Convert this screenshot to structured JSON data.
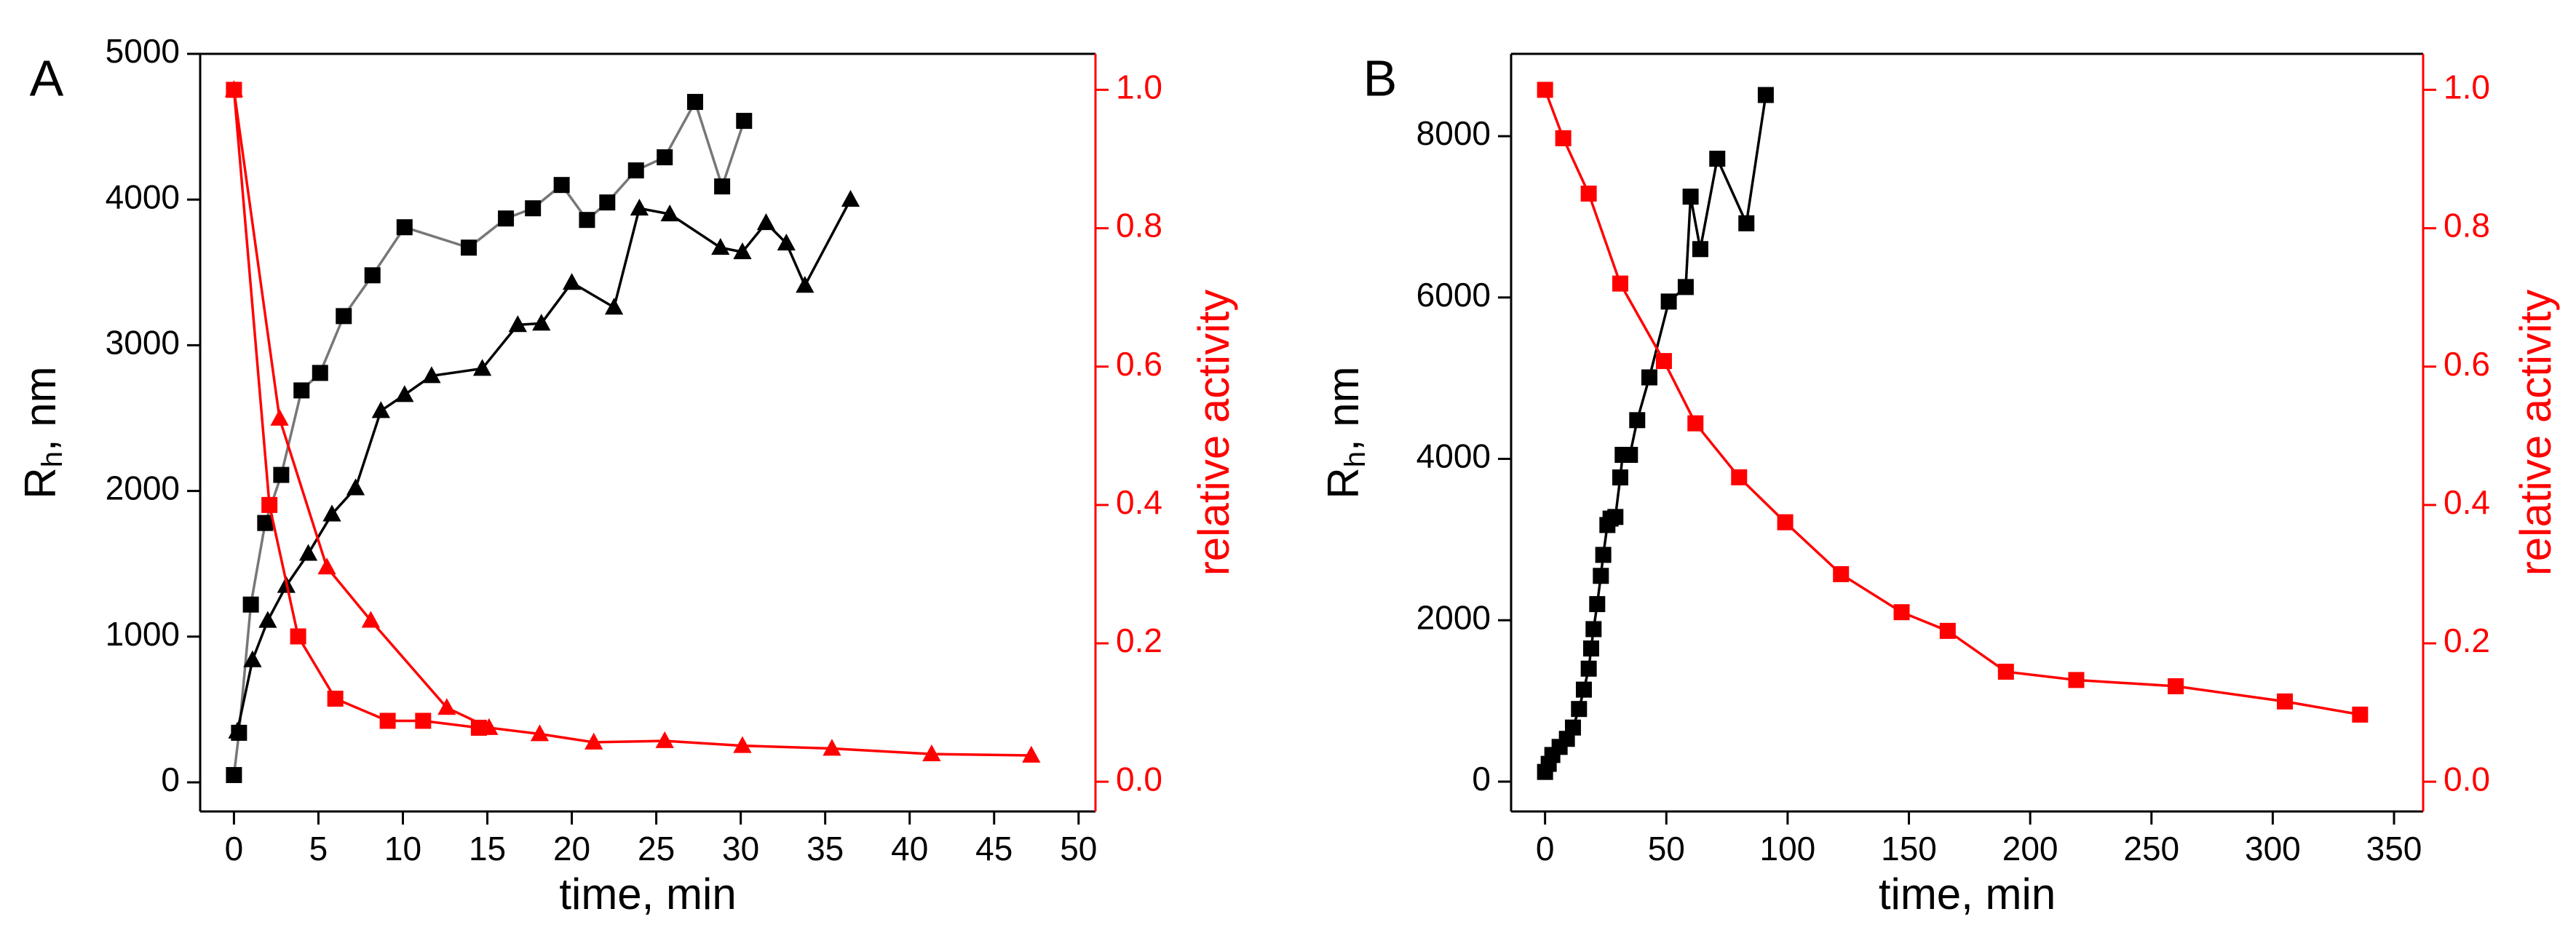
{
  "chart_data": [
    {
      "type": "line",
      "label": "A",
      "xlabel": "time, min",
      "ylabel": [
        "R",
        "h",
        ", nm"
      ],
      "y2label": "relative activity",
      "xlim": [
        -2,
        51
      ],
      "xticks": [
        0,
        5,
        10,
        15,
        20,
        25,
        30,
        35,
        40,
        45,
        50
      ],
      "ylim": [
        -200,
        5000
      ],
      "yticks": [
        0,
        1000,
        2000,
        3000,
        4000,
        5000
      ],
      "y2lim": [
        -0.043,
        1.052
      ],
      "y2ticks": [
        {
          "value": 0,
          "label": "0.0"
        },
        0.2,
        0.4,
        0.6,
        0.8,
        {
          "value": 1,
          "label": "1.0"
        }
      ],
      "axis_color": "#000000",
      "axis2_color": "#ff0000",
      "series": [
        {
          "color": "#000000",
          "line_color": "#777777",
          "marker": "square",
          "axis": "y",
          "x": [
            0,
            0.3,
            1.0,
            1.85,
            2.8,
            4.0,
            5.1,
            6.5,
            8.2,
            10.1,
            13.9,
            16.1,
            17.7,
            19.4,
            20.9,
            22.1,
            23.8,
            25.5,
            27.3,
            28.9,
            30.2
          ],
          "values": [
            50,
            340,
            1220,
            1780,
            2110,
            2690,
            2810,
            3200,
            3480,
            3810,
            3670,
            3870,
            3940,
            4100,
            3860,
            3980,
            4200,
            4290,
            4670,
            4090,
            4540
          ]
        },
        {
          "color": "#000000",
          "line_color": "#000000",
          "marker": "triangle",
          "axis": "y",
          "x": [
            0.2,
            1.1,
            2.0,
            3.1,
            4.4,
            5.8,
            7.2,
            8.7,
            10.1,
            11.7,
            14.7,
            16.8,
            18.2,
            20.0,
            22.5,
            24.0,
            25.8,
            28.8,
            30.1,
            31.5,
            32.7,
            33.8,
            36.5
          ],
          "values": [
            350,
            840,
            1110,
            1350,
            1570,
            1840,
            2020,
            2550,
            2660,
            2790,
            2840,
            3140,
            3150,
            3430,
            3260,
            3940,
            3900,
            3670,
            3640,
            3840,
            3700,
            3410,
            4000
          ]
        },
        {
          "color": "#ff0000",
          "line_color": "#ff0000",
          "marker": "square",
          "axis": "y2",
          "x": [
            0,
            2.1,
            3.8,
            6.0,
            9.1,
            11.2,
            14.5
          ],
          "values": [
            1.0,
            0.4,
            0.21,
            0.12,
            0.088,
            0.088,
            0.078
          ]
        },
        {
          "color": "#ff0000",
          "line_color": "#ff0000",
          "marker": "triangle",
          "axis": "y2",
          "x": [
            0,
            2.7,
            5.5,
            8.1,
            12.6,
            15.1,
            18.1,
            21.3,
            25.5,
            30.1,
            35.4,
            41.3,
            47.2
          ],
          "values": [
            1.0,
            0.525,
            0.31,
            0.233,
            0.107,
            0.078,
            0.069,
            0.057,
            0.059,
            0.052,
            0.048,
            0.04,
            0.038
          ]
        }
      ]
    },
    {
      "type": "line",
      "label": "B",
      "xlabel": "time, min",
      "ylabel": [
        "R",
        "h",
        ", nm"
      ],
      "y2label": "relative activity",
      "xlim": [
        -14,
        362
      ],
      "xticks": [
        0,
        50,
        100,
        150,
        200,
        250,
        300,
        350
      ],
      "ylim": [
        -370,
        9020
      ],
      "yticks": [
        0,
        2000,
        4000,
        6000,
        8000
      ],
      "y2lim": [
        -0.043,
        1.052
      ],
      "y2ticks": [
        {
          "value": 0,
          "label": "0.0"
        },
        0.2,
        0.4,
        0.6,
        0.8,
        {
          "value": 1,
          "label": "1.0"
        }
      ],
      "axis_color": "#000000",
      "axis2_color": "#ff0000",
      "series": [
        {
          "color": "#000000",
          "line_color": "#000000",
          "marker": "square",
          "axis": "y",
          "x": [
            0,
            1.5,
            3,
            6,
            9,
            11.5,
            14,
            16,
            18,
            19,
            20,
            21.5,
            23,
            24,
            25.7,
            27,
            29,
            31,
            32,
            35,
            38,
            43,
            51,
            58,
            60,
            64,
            71,
            83,
            91
          ],
          "values": [
            120,
            220,
            330,
            430,
            530,
            670,
            900,
            1140,
            1400,
            1650,
            1890,
            2200,
            2550,
            2810,
            3180,
            3260,
            3280,
            3770,
            4050,
            4050,
            4480,
            5010,
            5950,
            6130,
            7250,
            6600,
            7720,
            6920,
            8510
          ]
        },
        {
          "color": "#ff0000",
          "line_color": "#ff0000",
          "marker": "square",
          "axis": "y2",
          "x": [
            0,
            7.5,
            18,
            31,
            49,
            62,
            80,
            99,
            122,
            147,
            166,
            190,
            219,
            260,
            305,
            336
          ],
          "values": [
            1.0,
            0.93,
            0.85,
            0.72,
            0.608,
            0.518,
            0.44,
            0.375,
            0.3,
            0.245,
            0.218,
            0.159,
            0.147,
            0.138,
            0.116,
            0.097
          ]
        }
      ]
    }
  ]
}
